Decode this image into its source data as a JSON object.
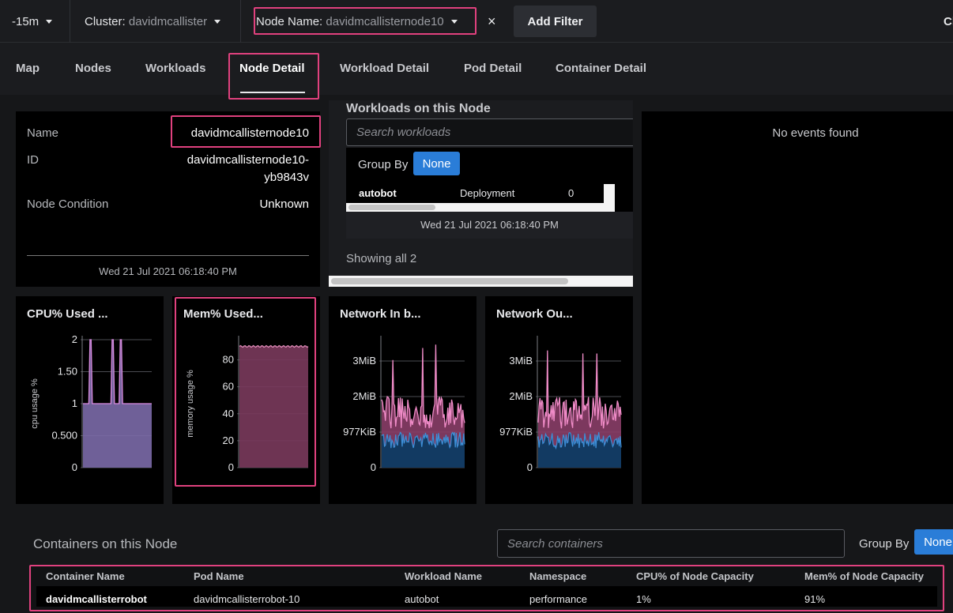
{
  "filters": {
    "time_range": "-15m",
    "cluster_label": "Cluster:",
    "cluster_value": "davidmcallister",
    "node_label": "Node Name:",
    "node_value": "davidmcallisternode10",
    "clear_glyph": "×",
    "add_filter": "Add Filter",
    "truncated_right": "Cl"
  },
  "tabs": [
    "Map",
    "Nodes",
    "Workloads",
    "Node Detail",
    "Workload Detail",
    "Pod Detail",
    "Container Detail"
  ],
  "active_tab": "Node Detail",
  "node_info": {
    "name_key": "Name",
    "name_value": "davidmcallisternode10",
    "id_key": "ID",
    "id_value_line1": "davidmcallisternode10-",
    "id_value_line2": "yb9843v",
    "condition_key": "Node Condition",
    "condition_value": "Unknown",
    "timestamp": "Wed 21 Jul 2021 06:18:40 PM"
  },
  "workloads": {
    "title": "Workloads on this Node",
    "search_placeholder": "Search workloads",
    "group_by_label": "Group By",
    "group_by_value": "None",
    "row": {
      "name": "autobot",
      "kind": "Deployment",
      "count": "0"
    },
    "timestamp": "Wed 21 Jul 2021 06:18:40 PM",
    "showing": "Showing all 2"
  },
  "events": {
    "empty": "No events found"
  },
  "charts": {
    "cpu": {
      "title": "CPU% Used ...",
      "ylabel": "cpu usage %",
      "ticks": [
        "2",
        "1.50",
        "1",
        "0.500",
        "0"
      ],
      "tick_values": [
        2,
        1.5,
        1,
        0.5,
        0
      ],
      "ymax": 2,
      "fill_color": "#7b6aa8",
      "line_color": "#d98be0"
    },
    "mem": {
      "title": "Mem% Used...",
      "ylabel": "memory usage %",
      "ticks": [
        "80",
        "60",
        "40",
        "20",
        "0"
      ],
      "tick_values": [
        80,
        60,
        40,
        20,
        0
      ],
      "ymax": 95,
      "fill_color": "#7a3a5c",
      "line_color": "#e08ab8"
    },
    "net_in": {
      "title": "Network In b...",
      "ticks": [
        "3MiB",
        "2MiB",
        "977KiB",
        "0"
      ],
      "tick_values": [
        3,
        2,
        1,
        0
      ],
      "ymax": 3.6,
      "fill_color": "#8a3e68",
      "line_color": "#f08cc8",
      "fill2_color": "#123a62",
      "line2_color": "#3d8fd8"
    },
    "net_out": {
      "title": "Network Ou...",
      "ticks": [
        "3MiB",
        "2MiB",
        "977KiB",
        "0"
      ],
      "tick_values": [
        3,
        2,
        1,
        0
      ],
      "ymax": 3.6,
      "fill_color": "#8a3e68",
      "line_color": "#f08cc8",
      "fill2_color": "#123a62",
      "line2_color": "#3d8fd8"
    }
  },
  "containers": {
    "title": "Containers on this Node",
    "search_placeholder": "Search containers",
    "group_by_label": "Group By",
    "group_by_value": "None",
    "columns": [
      "Container Name",
      "Pod Name",
      "Workload Name",
      "Namespace",
      "CPU% of Node Capacity",
      "Mem% of Node Capacity"
    ],
    "rows": [
      [
        "davidmcallisterrobot",
        "davidmcallisterrobot-10",
        "autobot",
        "performance",
        "1%",
        "91%"
      ]
    ]
  },
  "colors": {
    "accent": "#2a7dd8",
    "highlight": "#e0417e"
  }
}
